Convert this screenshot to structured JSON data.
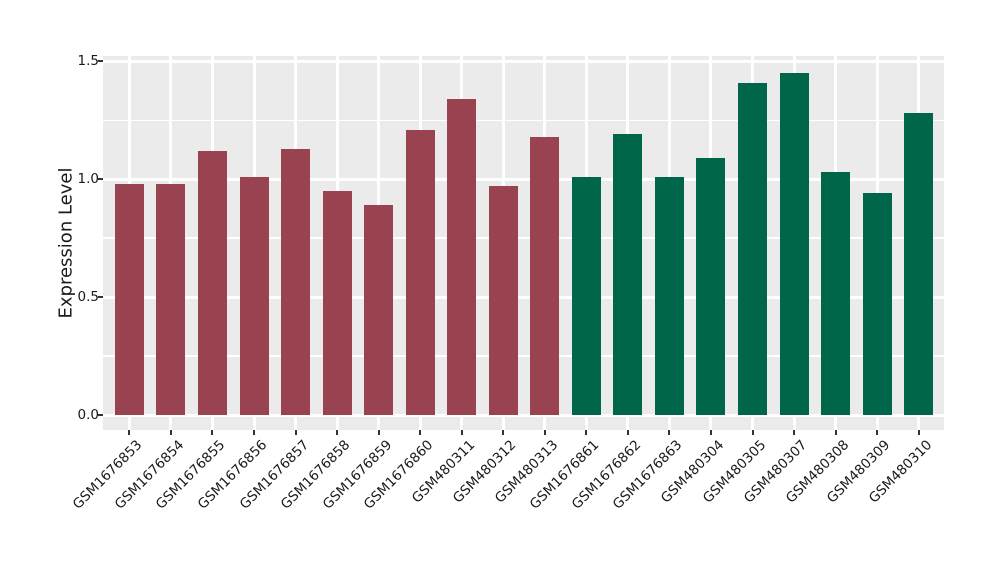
{
  "chart_data": {
    "type": "bar",
    "title": "",
    "xlabel": "",
    "ylabel": "Expression Level",
    "ylim": [
      0,
      1.52
    ],
    "yticks": [
      0.0,
      0.5,
      1.0,
      1.5
    ],
    "ytick_labels": [
      "0.0",
      "0.5",
      "1.0",
      "1.5"
    ],
    "grid": "white major and minor gridlines on gray panel",
    "legend_position": "none",
    "panel_background": "#EBEBEB",
    "grid_color": "#FFFFFF",
    "group_colors": {
      "A": "#994350",
      "B": "#006649"
    },
    "categories": [
      "GSM1676853",
      "GSM1676854",
      "GSM1676855",
      "GSM1676856",
      "GSM1676857",
      "GSM1676858",
      "GSM1676859",
      "GSM1676860",
      "GSM480311",
      "GSM480312",
      "GSM480313",
      "GSM1676861",
      "GSM1676862",
      "GSM1676863",
      "GSM480304",
      "GSM480305",
      "GSM480307",
      "GSM480308",
      "GSM480309",
      "GSM480310"
    ],
    "bars": [
      {
        "label": "GSM1676853",
        "value": 0.98,
        "group": "A"
      },
      {
        "label": "GSM1676854",
        "value": 0.98,
        "group": "A"
      },
      {
        "label": "GSM1676855",
        "value": 1.12,
        "group": "A"
      },
      {
        "label": "GSM1676856",
        "value": 1.01,
        "group": "A"
      },
      {
        "label": "GSM1676857",
        "value": 1.13,
        "group": "A"
      },
      {
        "label": "GSM1676858",
        "value": 0.95,
        "group": "A"
      },
      {
        "label": "GSM1676859",
        "value": 0.89,
        "group": "A"
      },
      {
        "label": "GSM1676860",
        "value": 1.21,
        "group": "A"
      },
      {
        "label": "GSM480311",
        "value": 1.34,
        "group": "A"
      },
      {
        "label": "GSM480312",
        "value": 0.97,
        "group": "A"
      },
      {
        "label": "GSM480313",
        "value": 1.18,
        "group": "A"
      },
      {
        "label": "GSM1676861",
        "value": 1.01,
        "group": "B"
      },
      {
        "label": "GSM1676862",
        "value": 1.19,
        "group": "B"
      },
      {
        "label": "GSM1676863",
        "value": 1.01,
        "group": "B"
      },
      {
        "label": "GSM480304",
        "value": 1.09,
        "group": "B"
      },
      {
        "label": "GSM480305",
        "value": 1.41,
        "group": "B"
      },
      {
        "label": "GSM480307",
        "value": 1.45,
        "group": "B"
      },
      {
        "label": "GSM480308",
        "value": 1.03,
        "group": "B"
      },
      {
        "label": "GSM480309",
        "value": 0.94,
        "group": "B"
      },
      {
        "label": "GSM480310",
        "value": 1.28,
        "group": "B"
      }
    ]
  }
}
